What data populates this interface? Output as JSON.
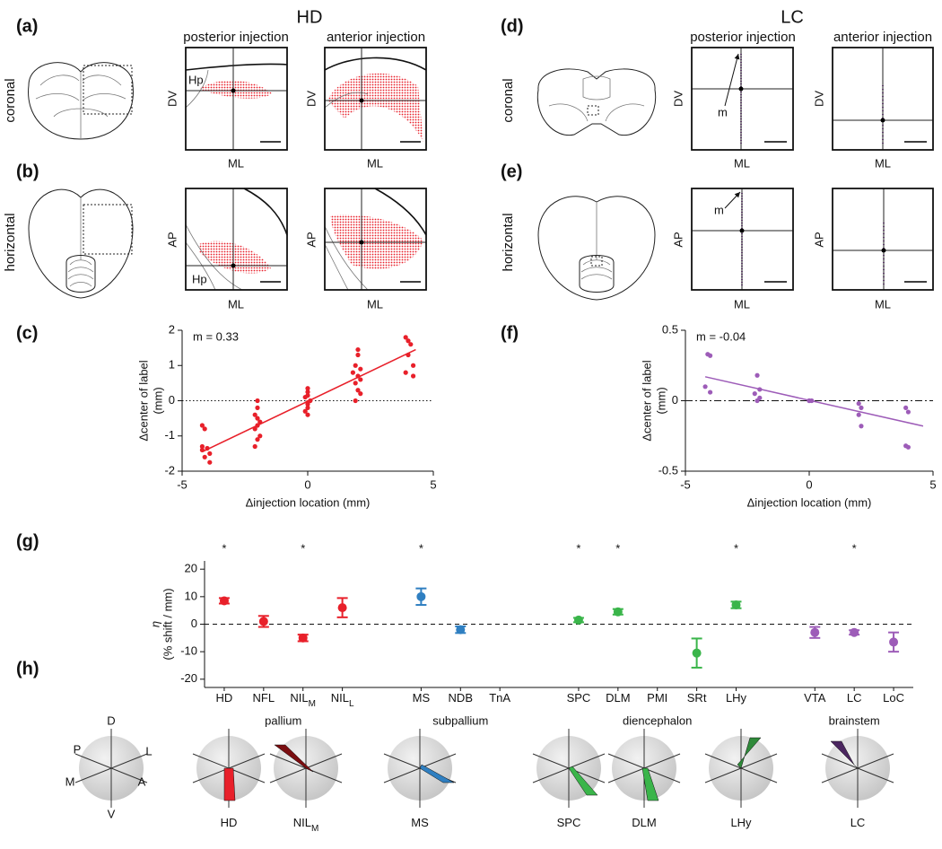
{
  "panel_labels": [
    "(a)",
    "(b)",
    "(c)",
    "(d)",
    "(e)",
    "(f)",
    "(g)",
    "(h)"
  ],
  "headers": [
    "HD",
    "LC"
  ],
  "planes": [
    "coronal",
    "horizontal"
  ],
  "injections": [
    "posterior injection",
    "anterior injection"
  ],
  "axis_labels": {
    "dv": "DV",
    "ml": "ML",
    "ap": "AP"
  },
  "region_label": "Hp",
  "marker_label": "m",
  "chart_data": [
    {
      "type": "scatter",
      "x": [
        -4.2,
        -4.1,
        -4.2,
        -4.0,
        -3.9,
        -4.1,
        -3.9,
        -4.2,
        -2.0,
        -2.0,
        -2.1,
        -2.0,
        -1.9,
        -2.0,
        -2.1,
        -1.9,
        -2.0,
        -2.1,
        0,
        0,
        0,
        -0.1,
        0.1,
        0,
        0,
        0,
        -0.1,
        0,
        2.0,
        2.0,
        1.9,
        2.1,
        1.8,
        2.0,
        2.1,
        1.9,
        2.0,
        1.9,
        2.1,
        3.9,
        4.0,
        4.1,
        4.0,
        4.2,
        3.9,
        4.2
      ],
      "values": [
        -0.7,
        -0.8,
        -1.3,
        -1.35,
        -1.5,
        -1.6,
        -1.75,
        -1.4,
        0,
        -0.2,
        -0.4,
        -0.5,
        -0.6,
        -0.7,
        -0.8,
        -1.0,
        -1.1,
        -1.3,
        0.35,
        0.25,
        0.15,
        0.1,
        0,
        -0.05,
        -0.1,
        -0.2,
        -0.3,
        -0.4,
        1.45,
        1.3,
        1.0,
        0.9,
        0.8,
        0.7,
        0.6,
        0.5,
        0.3,
        0,
        0.2,
        1.8,
        1.7,
        1.6,
        1.3,
        1.0,
        0.8,
        0.7
      ],
      "color": "#e8202a",
      "fit": {
        "x": [
          -4.2,
          4.3
        ],
        "values": [
          -1.45,
          1.45
        ]
      },
      "annotation": "m = 0.33",
      "xlabel": "Δinjection location (mm)",
      "ylabel": [
        "Δcenter of label",
        "(mm)"
      ],
      "xlim": [
        -5,
        5
      ],
      "xticks": [
        -5,
        0,
        5
      ],
      "ylim": [
        -2,
        2
      ],
      "yticks": [
        -2,
        -1,
        0,
        1,
        2
      ],
      "zero_line": "dotted"
    },
    {
      "type": "scatter",
      "x": [
        -4.1,
        -4.0,
        -4.2,
        -4.0,
        -2.1,
        -2.0,
        -2.2,
        -2.0,
        -2.1,
        0,
        0.1,
        0,
        2.0,
        2.1,
        2.0,
        2.1,
        3.9,
        4.0,
        4.0,
        3.9
      ],
      "values": [
        0.33,
        0.32,
        0.1,
        0.06,
        0.18,
        0.08,
        0.05,
        0.02,
        0,
        0,
        0,
        0,
        -0.02,
        -0.05,
        -0.1,
        -0.18,
        -0.05,
        -0.08,
        -0.33,
        -0.32
      ],
      "color": "#9d5cb8",
      "fit": {
        "x": [
          -4.2,
          4.6
        ],
        "values": [
          0.17,
          -0.18
        ]
      },
      "annotation": "m = -0.04",
      "xlabel": "Δinjection location (mm)",
      "ylabel": [
        "Δcenter of label",
        "(mm)"
      ],
      "xlim": [
        -5,
        5
      ],
      "xticks": [
        -5,
        0,
        5
      ],
      "ylim": [
        -0.5,
        0.5
      ],
      "yticks": [
        -0.5,
        0,
        0.5
      ],
      "zero_line": "dashdot"
    },
    {
      "type": "errorbar",
      "categories": [
        "HD",
        "NFL",
        "NIL",
        "NIL",
        null,
        "MS",
        "NDB",
        "TnA",
        null,
        "SPC",
        "DLM",
        "PMI",
        "SRt",
        "LHy",
        null,
        "VTA",
        "LC",
        "LoC"
      ],
      "subscripts": [
        null,
        null,
        "M",
        "L",
        null,
        null,
        null,
        null,
        null,
        null,
        null,
        null,
        null,
        null,
        null,
        null,
        null,
        null
      ],
      "significance_labels": [
        "*",
        null,
        "*",
        null,
        null,
        "*",
        null,
        null,
        null,
        "*",
        "*",
        null,
        null,
        "*",
        null,
        null,
        "*",
        null
      ],
      "series": [
        {
          "name": "pallium",
          "color": "#e8202a",
          "values": [
            8.5,
            1,
            -5,
            6,
            null,
            null,
            null,
            null,
            null,
            null,
            null,
            null,
            null,
            null,
            null,
            null,
            null,
            null
          ],
          "errors": [
            1,
            2,
            1.2,
            3.5,
            null,
            null,
            null,
            null,
            null,
            null,
            null,
            null,
            null,
            null,
            null,
            null,
            null,
            null
          ]
        },
        {
          "name": "subpallium",
          "color": "#2f7fc1",
          "values": [
            null,
            null,
            null,
            null,
            null,
            10,
            -2,
            null,
            null,
            null,
            null,
            null,
            null,
            null,
            null,
            null,
            null,
            null
          ],
          "errors": [
            null,
            null,
            null,
            null,
            null,
            3,
            1.2,
            null,
            null,
            null,
            null,
            null,
            null,
            null,
            null,
            null,
            null,
            null
          ]
        },
        {
          "name": "diencephalon",
          "color": "#3ab54a",
          "values": [
            null,
            null,
            null,
            null,
            null,
            null,
            null,
            null,
            null,
            1.5,
            4.5,
            null,
            -10.5,
            7,
            null,
            null,
            null,
            null
          ],
          "errors": [
            null,
            null,
            null,
            null,
            null,
            null,
            null,
            null,
            null,
            0.8,
            1,
            null,
            5.3,
            1.2,
            null,
            null,
            null,
            null
          ]
        },
        {
          "name": "brainstem",
          "color": "#9d5cb8",
          "values": [
            null,
            null,
            null,
            null,
            null,
            null,
            null,
            null,
            null,
            null,
            null,
            null,
            null,
            null,
            null,
            -3,
            -3,
            -6.5
          ],
          "errors": [
            null,
            null,
            null,
            null,
            null,
            null,
            null,
            null,
            null,
            null,
            null,
            null,
            null,
            null,
            null,
            2,
            0.8,
            3.5
          ]
        }
      ],
      "ylabel": [
        "η",
        "(% shift / mm)"
      ],
      "ylim": [
        -23,
        23
      ],
      "yticks": [
        -20,
        -10,
        0,
        10,
        20
      ],
      "zero_line": "dashed"
    }
  ],
  "orientation_axes": [
    "D",
    "L",
    "A",
    "V",
    "M",
    "P"
  ],
  "spheres": [
    {
      "label": "HD"
    },
    {
      "label": "NIL",
      "sub": "M"
    },
    {
      "label": "MS"
    },
    {
      "label": "SPC"
    },
    {
      "label": "DLM"
    },
    {
      "label": "LHy"
    },
    {
      "label": "LC"
    }
  ]
}
